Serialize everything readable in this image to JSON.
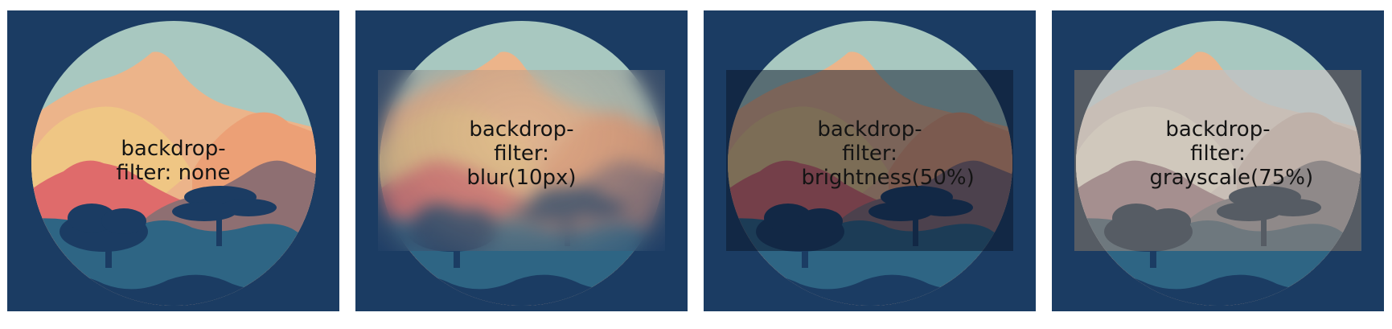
{
  "panels": [
    {
      "caption": "backdrop-filter: none",
      "filter": "none"
    },
    {
      "caption": "backdrop-filter: blur(10px)",
      "filter": "blur(10px)"
    },
    {
      "caption": "backdrop-filter: brightness(50%)",
      "filter": "brightness(50%)"
    },
    {
      "caption": "backdrop-filter: grayscale(75%)",
      "filter": "grayscale(75%)"
    }
  ],
  "colors": {
    "panel_bg": "#1b3c63",
    "sky": "#a8c8c0",
    "mountain_peach": "#ecb48a",
    "mountain_yellow": "#efc684",
    "mountain_orange": "#eca076",
    "mountain_red": "#df6b6b",
    "mountain_mauve": "#8e6f72",
    "ground_teal": "#2e6584",
    "tree": "#1b3c63"
  }
}
